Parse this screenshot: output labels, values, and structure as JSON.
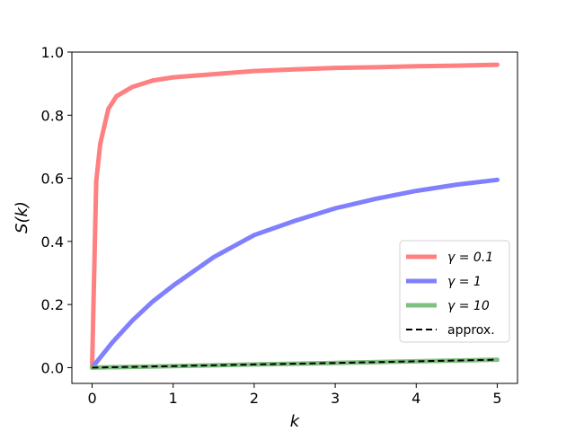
{
  "chart_data": {
    "type": "line",
    "title": "",
    "xlabel": "k",
    "ylabel": "S(k)",
    "xlim": [
      -0.25,
      5.25
    ],
    "ylim": [
      -0.05,
      1.0
    ],
    "x_ticks": [
      "0",
      "1",
      "2",
      "3",
      "4",
      "5"
    ],
    "y_ticks": [
      "0.0",
      "0.2",
      "0.4",
      "0.6",
      "0.8",
      "1.0"
    ],
    "grid": false,
    "legend_position": "lower-right",
    "series": [
      {
        "name": "γ = 0.1",
        "color": "#ff8080",
        "style": "solid",
        "x": [
          0,
          0.05,
          0.1,
          0.2,
          0.3,
          0.5,
          0.75,
          1,
          1.5,
          2,
          2.5,
          3,
          3.5,
          4,
          4.5,
          5
        ],
        "y": [
          0,
          0.59,
          0.71,
          0.82,
          0.86,
          0.89,
          0.91,
          0.92,
          0.93,
          0.94,
          0.945,
          0.95,
          0.952,
          0.955,
          0.957,
          0.96
        ]
      },
      {
        "name": "γ = 1",
        "color": "#8080ff",
        "style": "solid",
        "x": [
          0,
          0.25,
          0.5,
          0.75,
          1,
          1.5,
          2,
          2.5,
          3,
          3.5,
          4,
          4.5,
          5
        ],
        "y": [
          0,
          0.08,
          0.15,
          0.21,
          0.26,
          0.35,
          0.42,
          0.465,
          0.505,
          0.535,
          0.56,
          0.58,
          0.595
        ]
      },
      {
        "name": "γ = 10",
        "color": "#80c080",
        "style": "solid",
        "x": [
          0,
          1,
          2,
          3,
          4,
          5
        ],
        "y": [
          0,
          0.005,
          0.01,
          0.015,
          0.02,
          0.025
        ]
      },
      {
        "name": "approx.",
        "color": "#000000",
        "style": "dashed",
        "x": [
          0,
          1,
          2,
          3,
          4,
          5
        ],
        "y": [
          0,
          0.005,
          0.01,
          0.015,
          0.02,
          0.025
        ]
      }
    ]
  }
}
